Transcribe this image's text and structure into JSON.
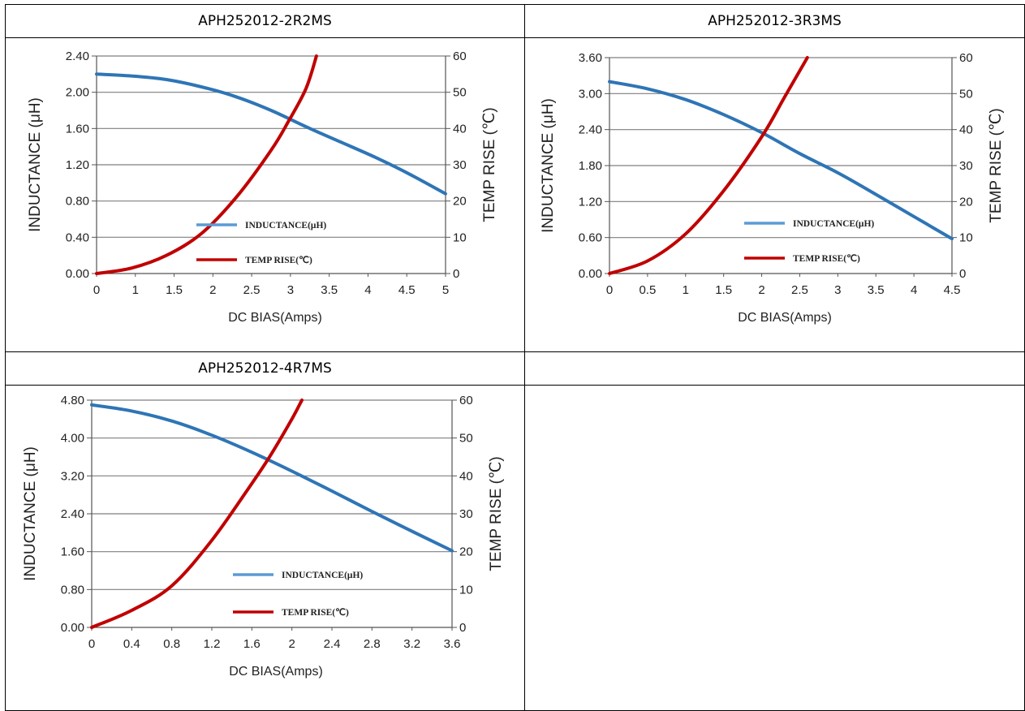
{
  "charts": [
    {
      "title": "APH252012-2R2MS",
      "chart_data": {
        "type": "line",
        "title": "APH252012-2R2MS",
        "xlabel": "DC BIAS(Amps)",
        "ylabel": "INDUCTANCE (μH)",
        "y2label": "TEMP RISE (℃)",
        "xlim": [
          0,
          5
        ],
        "x_ticks": [
          "0",
          "1",
          "1.5",
          "2",
          "2.5",
          "3",
          "3.5",
          "4",
          "4.5",
          "5"
        ],
        "ylim": [
          0,
          2.4
        ],
        "y_ticks": [
          "0.00",
          "0.40",
          "0.80",
          "1.20",
          "1.60",
          "2.00",
          "2.40"
        ],
        "y2lim": [
          0,
          60
        ],
        "y2_ticks": [
          "0",
          "10",
          "20",
          "30",
          "40",
          "50",
          "60"
        ],
        "grid": true,
        "legend_position": "bottom-right",
        "series": [
          {
            "name": "INDUCTANCE(μH)",
            "axis": "left",
            "color": "#2E75B6",
            "x": [
              0,
              0.5,
              1,
              1.5,
              2,
              2.5,
              3,
              3.5,
              4,
              4.5,
              5
            ],
            "y": [
              2.2,
              2.18,
              2.14,
              2.06,
              1.95,
              1.8,
              1.62,
              1.45,
              1.28,
              1.09,
              0.88
            ]
          },
          {
            "name": "TEMP RISE(℃)",
            "axis": "right",
            "color": "#C00000",
            "x": [
              0,
              0.5,
              1,
              1.5,
              2,
              2.5,
              2.75,
              3,
              3.15
            ],
            "y": [
              0,
              1.5,
              5,
              11,
              21,
              34,
              42,
              51,
              60
            ]
          }
        ]
      }
    },
    {
      "title": "APH252012-3R3MS",
      "chart_data": {
        "type": "line",
        "title": "APH252012-3R3MS",
        "xlabel": "DC BIAS(Amps)",
        "ylabel": "INDUCTANCE (μH)",
        "y2label": "TEMP RISE (℃)",
        "xlim": [
          0,
          4.5
        ],
        "x_ticks": [
          "0",
          "0.5",
          "1",
          "1.5",
          "2",
          "2.5",
          "3",
          "3.5",
          "4",
          "4.5"
        ],
        "ylim": [
          0,
          3.6
        ],
        "y_ticks": [
          "0.00",
          "0.60",
          "1.20",
          "1.80",
          "2.40",
          "3.00",
          "3.60"
        ],
        "y2lim": [
          0,
          60
        ],
        "y2_ticks": [
          "0",
          "10",
          "20",
          "30",
          "40",
          "50",
          "60"
        ],
        "grid": true,
        "legend_position": "bottom-right",
        "series": [
          {
            "name": "INDUCTANCE(μH)",
            "axis": "left",
            "color": "#2E75B6",
            "x": [
              0,
              0.5,
              1,
              1.5,
              2,
              2.5,
              3,
              3.5,
              4,
              4.5
            ],
            "y": [
              3.2,
              3.08,
              2.9,
              2.65,
              2.35,
              2.0,
              1.68,
              1.32,
              0.95,
              0.58
            ]
          },
          {
            "name": "TEMP RISE(℃)",
            "axis": "right",
            "color": "#C00000",
            "x": [
              0,
              0.5,
              1,
              1.5,
              2,
              2.3,
              2.6
            ],
            "y": [
              0,
              3.5,
              11,
              23,
              38,
              49,
              60
            ]
          }
        ]
      }
    },
    {
      "title": "APH252012-4R7MS",
      "chart_data": {
        "type": "line",
        "title": "APH252012-4R7MS",
        "xlabel": "DC BIAS(Amps)",
        "ylabel": "INDUCTANCE (μH)",
        "y2label": "TEMP RISE (℃)",
        "xlim": [
          0,
          3.6
        ],
        "x_ticks": [
          "0",
          "0.4",
          "0.8",
          "1.2",
          "1.6",
          "2",
          "2.4",
          "2.8",
          "3.2",
          "3.6"
        ],
        "ylim": [
          0,
          4.8
        ],
        "y_ticks": [
          "0.00",
          "0.80",
          "1.60",
          "2.40",
          "3.20",
          "4.00",
          "4.80"
        ],
        "y2lim": [
          0,
          60
        ],
        "y2_ticks": [
          "0",
          "10",
          "20",
          "30",
          "40",
          "50",
          "60"
        ],
        "grid": true,
        "legend_position": "bottom-right",
        "series": [
          {
            "name": "INDUCTANCE(μH)",
            "axis": "left",
            "color": "#2E75B6",
            "x": [
              0,
              0.4,
              0.8,
              1.2,
              1.6,
              2,
              2.4,
              2.8,
              3.2,
              3.6
            ],
            "y": [
              4.7,
              4.57,
              4.36,
              4.06,
              3.7,
              3.3,
              2.88,
              2.45,
              2.03,
              1.62
            ]
          },
          {
            "name": "TEMP RISE(℃)",
            "axis": "right",
            "color": "#C00000",
            "x": [
              0,
              0.4,
              0.8,
              1.2,
              1.6,
              1.8,
              2,
              2.1
            ],
            "y": [
              0,
              4.5,
              11,
              23,
              38,
              46,
              55,
              60
            ]
          }
        ]
      }
    }
  ]
}
